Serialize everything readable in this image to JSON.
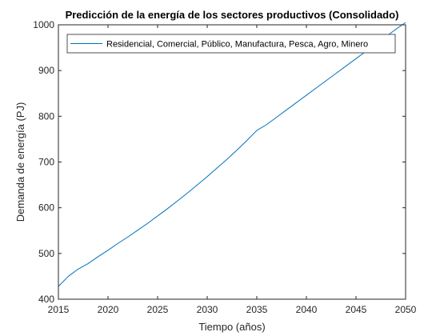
{
  "chart_data": {
    "type": "line",
    "title": "Predicción de la energía de los sectores productivos (Consolidado)",
    "xlabel": "Tiempo (años)",
    "ylabel": "Demanda de energía (PJ)",
    "xlim": [
      2015,
      2050
    ],
    "ylim": [
      400,
      1000
    ],
    "xticks": [
      2015,
      2020,
      2025,
      2030,
      2035,
      2040,
      2045,
      2050
    ],
    "yticks": [
      400,
      500,
      600,
      700,
      800,
      900,
      1000
    ],
    "xtick_labels": [
      "2015",
      "2020",
      "2025",
      "2030",
      "2035",
      "2040",
      "2045",
      "2050"
    ],
    "ytick_labels": [
      "400",
      "500",
      "600",
      "700",
      "800",
      "900",
      "1000"
    ],
    "grid": false,
    "legend_position": "top",
    "series": [
      {
        "name": "Residencial, Comercial, Público, Manufactura, Pesca, Agro, Minero",
        "color": "#0072BD",
        "x": [
          2015,
          2016,
          2017,
          2018,
          2019,
          2020,
          2021,
          2022,
          2023,
          2024,
          2025,
          2026,
          2027,
          2028,
          2029,
          2030,
          2031,
          2032,
          2033,
          2034,
          2035,
          2036,
          2037,
          2038,
          2039,
          2040,
          2041,
          2042,
          2043,
          2044,
          2045,
          2046,
          2047,
          2048,
          2049,
          2050
        ],
        "y": [
          428,
          450,
          466,
          478,
          493,
          507,
          522,
          536,
          551,
          566,
          582,
          598,
          615,
          632,
          650,
          668,
          687,
          706,
          726,
          747,
          769,
          782,
          798,
          814,
          830,
          846,
          862,
          878,
          894,
          910,
          926,
          942,
          958,
          974,
          990,
          1005
        ]
      }
    ]
  }
}
